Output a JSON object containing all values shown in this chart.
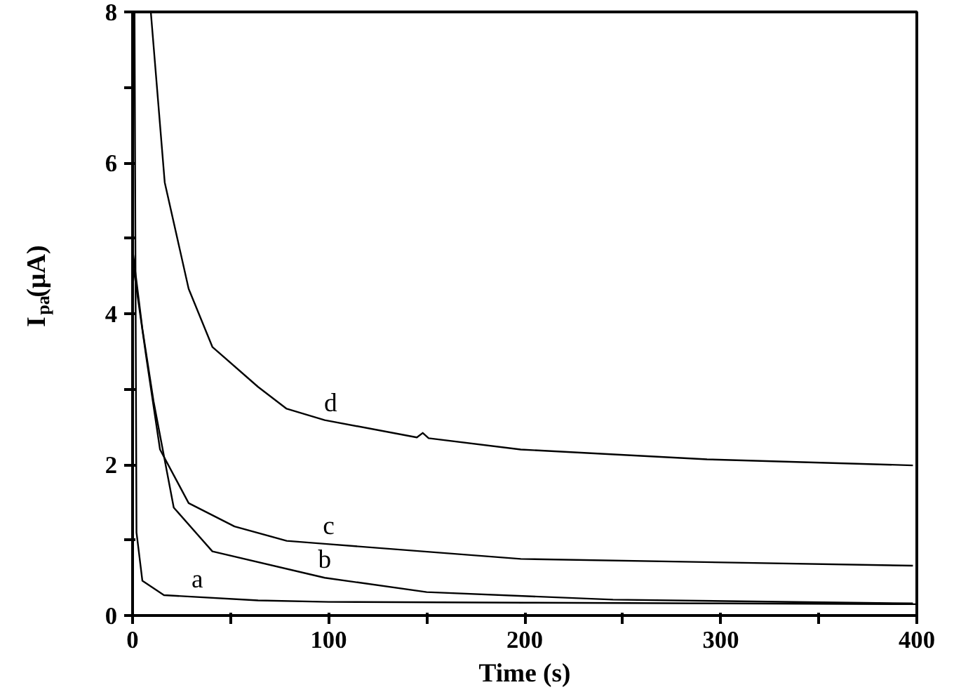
{
  "chart_data": {
    "type": "line",
    "xlabel": "Time (s)",
    "ylabel": "I$_{pa}$(μA)",
    "xlim": [
      0,
      400
    ],
    "ylim": [
      0,
      8
    ],
    "xticks": [
      0,
      {
        "value": 50,
        "label": null
      },
      100,
      {
        "value": 150,
        "label": null
      },
      200,
      {
        "value": 250,
        "label": null
      },
      300,
      {
        "value": 350,
        "label": null
      },
      400
    ],
    "yticks": [
      0,
      {
        "value": 1,
        "label": null
      },
      2,
      {
        "value": 3,
        "label": null
      },
      4,
      {
        "value": 5,
        "label": null
      },
      6,
      {
        "value": 7,
        "label": null
      },
      8
    ],
    "series": [
      {
        "name": "a",
        "color": "#000000",
        "x": [
          1,
          2,
          5,
          16,
          64,
          100,
          200,
          300,
          400
        ],
        "values": [
          8,
          1.1,
          0.46,
          0.27,
          0.2,
          0.18,
          0.17,
          0.16,
          0.15
        ]
      },
      {
        "name": "b",
        "color": "#000000",
        "x": [
          0,
          5,
          10.7,
          21,
          40.7,
          98,
          150,
          245,
          398
        ],
        "values": [
          4.85,
          3.8,
          2.84,
          1.43,
          0.85,
          0.5,
          0.31,
          0.21,
          0.16
        ]
      },
      {
        "name": "c",
        "color": "#000000",
        "x": [
          0,
          7,
          14,
          28.6,
          52,
          78.6,
          98,
          198,
          398
        ],
        "values": [
          4.7,
          3.42,
          2.2,
          1.49,
          1.18,
          0.99,
          0.95,
          0.75,
          0.66
        ]
      },
      {
        "name": "d",
        "color": "#000000",
        "x": [
          9.3,
          16.4,
          28.6,
          40.7,
          64,
          78.6,
          98,
          145,
          148,
          151,
          198,
          293,
          398
        ],
        "values": [
          8,
          5.74,
          4.33,
          3.56,
          3.03,
          2.74,
          2.59,
          2.36,
          2.42,
          2.35,
          2.2,
          2.07,
          1.99
        ]
      }
    ]
  }
}
